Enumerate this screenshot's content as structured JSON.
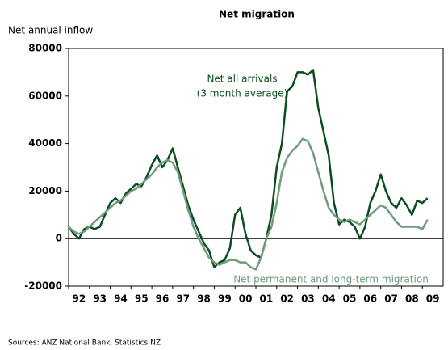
{
  "chart_data": {
    "type": "line",
    "title": "Net migration",
    "y_label": "Net annual inflow",
    "source": "Sources: ANZ National Bank, Statistics NZ",
    "annotations": [
      {
        "lines": [
          "Net all arrivals",
          "(3 month average)"
        ],
        "series": 0
      },
      {
        "lines": [
          "Net permanent and long-term migration"
        ],
        "series": 1
      }
    ],
    "x": [
      1992,
      1992.25,
      1992.5,
      1992.75,
      1993,
      1993.25,
      1993.5,
      1993.75,
      1994,
      1994.25,
      1994.5,
      1994.75,
      1995,
      1995.25,
      1995.5,
      1995.75,
      1996,
      1996.25,
      1996.5,
      1996.75,
      1997,
      1997.25,
      1997.5,
      1997.75,
      1998,
      1998.25,
      1998.5,
      1998.75,
      1999,
      1999.25,
      1999.5,
      1999.75,
      2000,
      2000.25,
      2000.5,
      2000.75,
      2001,
      2001.25,
      2001.5,
      2001.75,
      2002,
      2002.25,
      2002.5,
      2002.75,
      2003,
      2003.25,
      2003.5,
      2003.75,
      2004,
      2004.25,
      2004.5,
      2004.75,
      2005,
      2005.25,
      2005.5,
      2005.75,
      2006,
      2006.25,
      2006.5,
      2006.75,
      2007,
      2007.25,
      2007.5,
      2007.75,
      2008,
      2008.25,
      2008.5,
      2008.75,
      2009,
      2009.25
    ],
    "series": [
      {
        "name": "Net all arrivals",
        "color": "#0b4d1e",
        "values": [
          5000,
          2000,
          0,
          4000,
          5000,
          4000,
          5000,
          10000,
          15000,
          17000,
          15000,
          19000,
          21000,
          23000,
          22000,
          26000,
          31000,
          35000,
          30000,
          33000,
          38000,
          30000,
          22000,
          14000,
          8000,
          3000,
          -2000,
          -5000,
          -12000,
          -10000,
          -9000,
          -4000,
          10000,
          13000,
          2000,
          -5000,
          -7000,
          -8000,
          0,
          10000,
          30000,
          40000,
          62000,
          64000,
          70000,
          70000,
          69000,
          71000,
          55000,
          45000,
          35000,
          15000,
          6000,
          8000,
          7000,
          5000,
          0,
          5000,
          15000,
          20000,
          27000,
          20000,
          15000,
          13000,
          17000,
          14000,
          10000,
          16000,
          15000,
          17000
        ]
      },
      {
        "name": "Net permanent and long-term migration",
        "color": "#6e9c7c",
        "values": [
          5000,
          3000,
          2000,
          3000,
          5000,
          7000,
          9000,
          11000,
          13000,
          15000,
          16000,
          18000,
          20000,
          21000,
          23000,
          25000,
          27000,
          30000,
          32000,
          33000,
          32000,
          28000,
          20000,
          12000,
          5000,
          0,
          -4000,
          -8000,
          -10000,
          -11000,
          -10000,
          -9000,
          -9000,
          -10000,
          -10000,
          -12000,
          -13000,
          -8000,
          0,
          5000,
          15000,
          28000,
          34000,
          37000,
          39000,
          42000,
          41000,
          36000,
          28000,
          20000,
          13000,
          10000,
          8000,
          7000,
          8000,
          7000,
          6000,
          8000,
          10000,
          12000,
          14000,
          13000,
          10000,
          7000,
          5000,
          5000,
          5000,
          5000,
          4000,
          8000
        ]
      }
    ],
    "xlim": [
      1992,
      2010
    ],
    "xticks": [
      {
        "value": 1992,
        "label": "92"
      },
      {
        "value": 1993,
        "label": "93"
      },
      {
        "value": 1994,
        "label": "94"
      },
      {
        "value": 1995,
        "label": "95"
      },
      {
        "value": 1996,
        "label": "96"
      },
      {
        "value": 1997,
        "label": "97"
      },
      {
        "value": 1998,
        "label": "98"
      },
      {
        "value": 1999,
        "label": "99"
      },
      {
        "value": 2000,
        "label": "00"
      },
      {
        "value": 2001,
        "label": "01"
      },
      {
        "value": 2002,
        "label": "02"
      },
      {
        "value": 2003,
        "label": "03"
      },
      {
        "value": 2004,
        "label": "04"
      },
      {
        "value": 2005,
        "label": "05"
      },
      {
        "value": 2006,
        "label": "06"
      },
      {
        "value": 2007,
        "label": "07"
      },
      {
        "value": 2008,
        "label": "08"
      },
      {
        "value": 2009,
        "label": "09"
      }
    ],
    "ylim": [
      -20000,
      80000
    ],
    "yticks": [
      -20000,
      0,
      20000,
      40000,
      60000,
      80000
    ],
    "grid": false
  }
}
